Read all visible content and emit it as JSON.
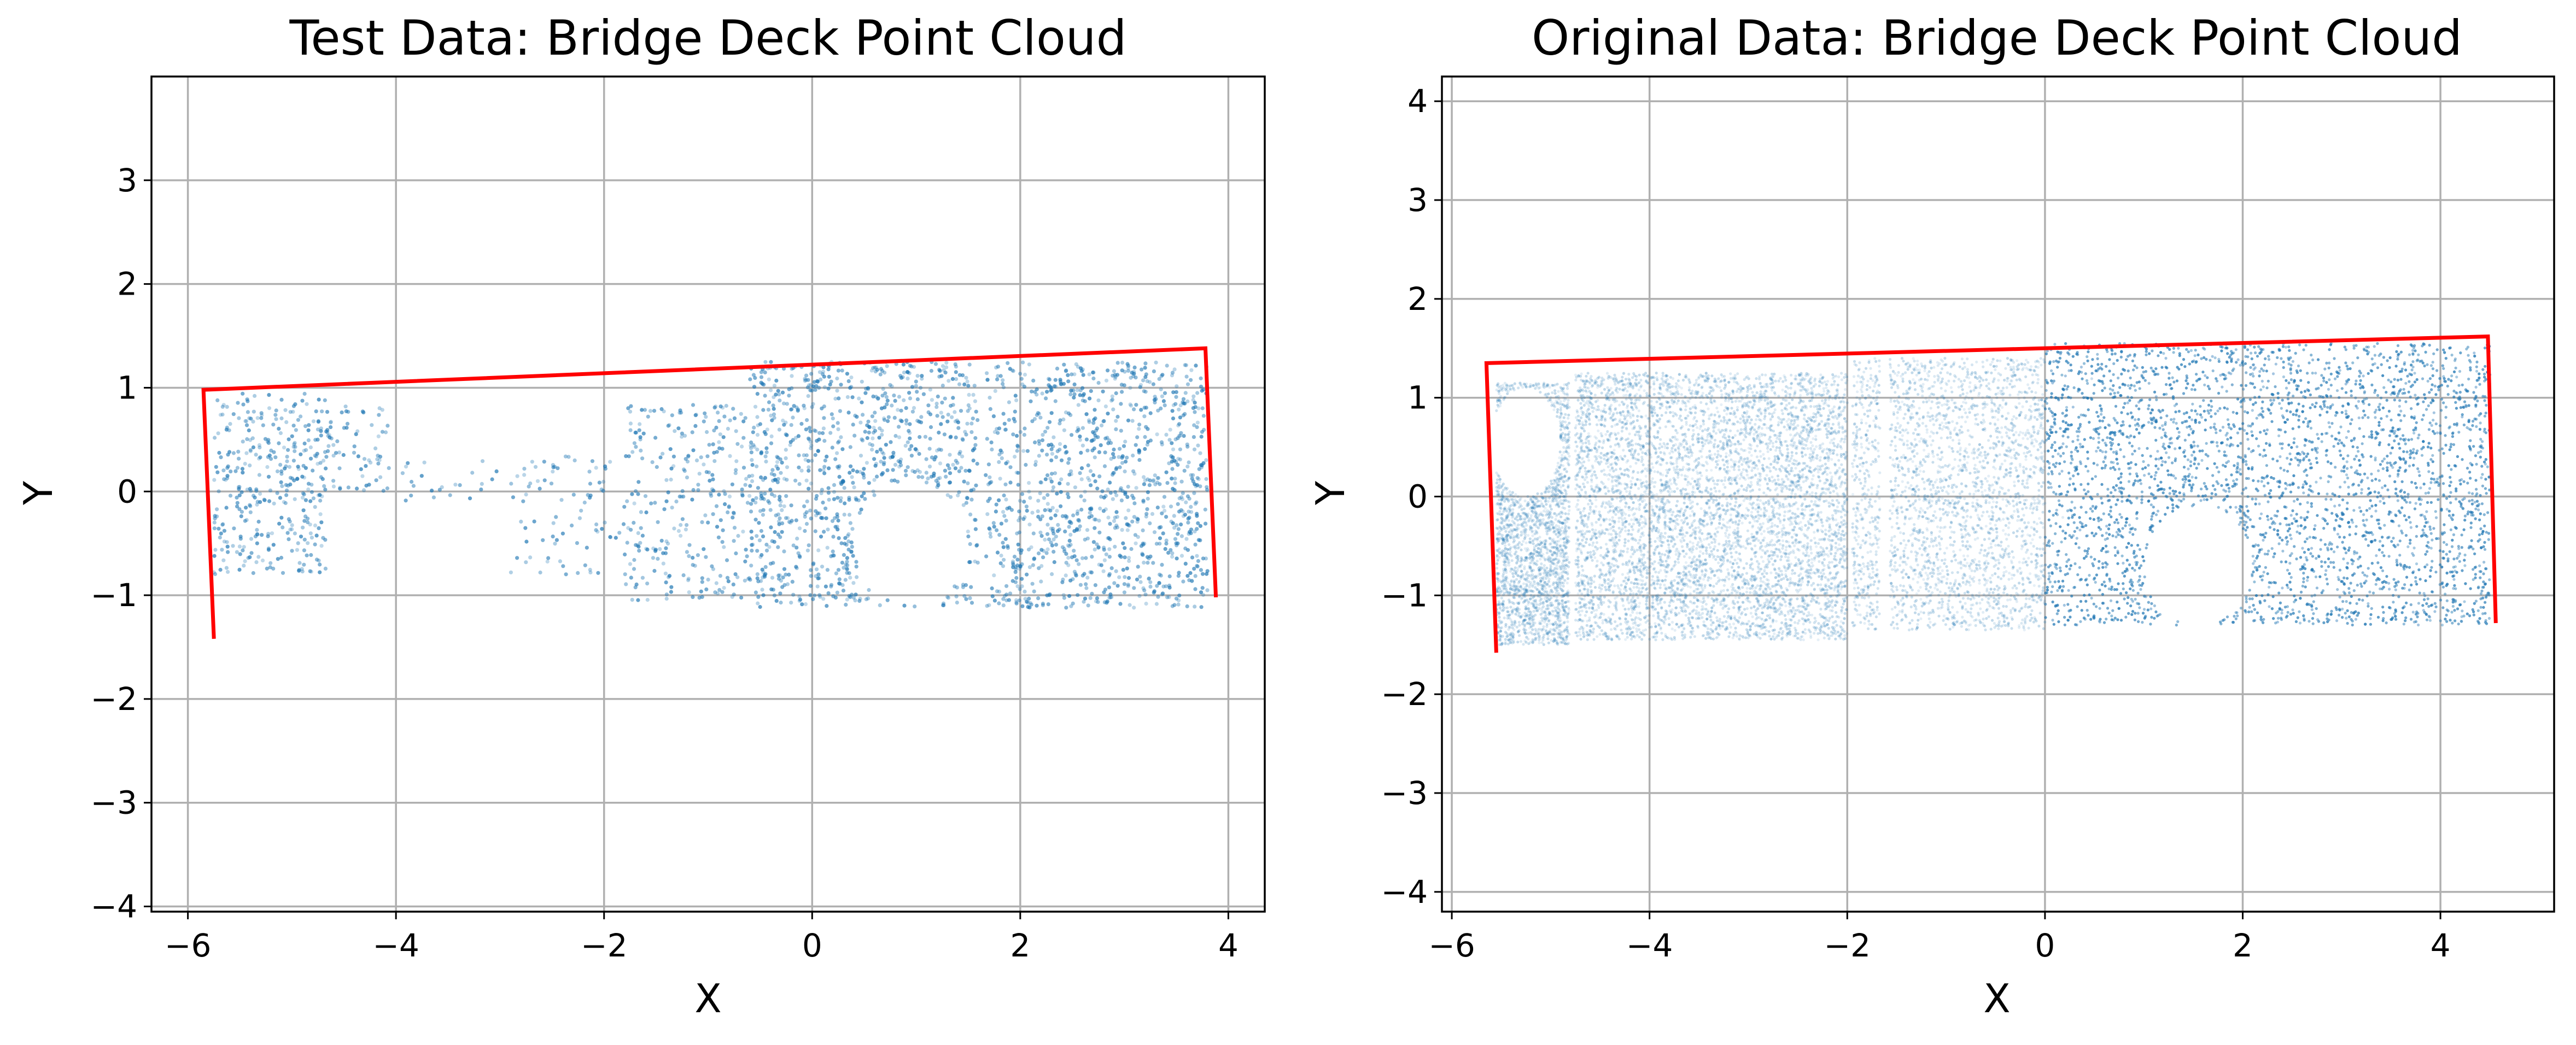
{
  "chart_data": [
    {
      "type": "scatter",
      "title": "Test Data: Bridge Deck Point Cloud",
      "xlabel": "X",
      "ylabel": "Y",
      "xlim": [
        -6.35,
        4.35
      ],
      "ylim": [
        -4.05,
        4.0
      ],
      "x_ticks": [
        "−6",
        "−4",
        "−2",
        "0",
        "2",
        "4"
      ],
      "y_ticks": [
        "−4",
        "−3",
        "−2",
        "−1",
        "0",
        "1",
        "2",
        "3"
      ],
      "x_tick_values": [
        -6,
        -4,
        -2,
        0,
        2,
        4
      ],
      "y_tick_values": [
        -4,
        -3,
        -2,
        -1,
        0,
        1,
        2,
        3
      ],
      "grid": true,
      "point_color": "#1f77b4",
      "point_density": "sparse",
      "boundary_color": "#ff0000",
      "point_regions": [
        {
          "x": [
            -5.75,
            -4.65
          ],
          "y": [
            -0.8,
            0.95
          ],
          "density": 0.85
        },
        {
          "x": [
            -4.65,
            -4.05
          ],
          "y": [
            0.0,
            0.85
          ],
          "density": 0.55
        },
        {
          "x": [
            -4.05,
            -3.0
          ],
          "y": [
            -0.1,
            0.3
          ],
          "density": 0.25
        },
        {
          "x": [
            -2.9,
            -1.8
          ],
          "y": [
            -0.8,
            0.35
          ],
          "density": 0.3
        },
        {
          "x": [
            -1.8,
            -0.6
          ],
          "y": [
            -1.05,
            0.85
          ],
          "density": 0.55
        },
        {
          "x": [
            -0.6,
            3.8
          ],
          "y": [
            -1.12,
            1.25
          ],
          "density": 0.95
        }
      ],
      "holes": [
        {
          "cx": 0.95,
          "cy": -0.5,
          "rx": 0.55,
          "ry": 0.6
        }
      ],
      "gaps": [
        {
          "x": 1.63,
          "w": 0.07
        }
      ],
      "boundary": [
        {
          "x": -5.75,
          "y": -1.42
        },
        {
          "x": -5.85,
          "y": 0.98
        },
        {
          "x": 3.78,
          "y": 1.38
        },
        {
          "x": 3.88,
          "y": -1.02
        }
      ]
    },
    {
      "type": "scatter",
      "title": "Original Data: Bridge Deck Point Cloud",
      "xlabel": "X",
      "ylabel": "Y",
      "xlim": [
        -6.1,
        5.15
      ],
      "ylim": [
        -4.2,
        4.25
      ],
      "x_ticks": [
        "−6",
        "−4",
        "−2",
        "0",
        "2",
        "4"
      ],
      "y_ticks": [
        "−4",
        "−3",
        "−2",
        "−1",
        "0",
        "1",
        "2",
        "3",
        "4"
      ],
      "x_tick_values": [
        -6,
        -4,
        -2,
        0,
        2,
        4
      ],
      "y_tick_values": [
        -4,
        -3,
        -2,
        -1,
        0,
        1,
        2,
        3,
        4
      ],
      "grid": true,
      "point_color": "#1f77b4",
      "point_density": "dense",
      "boundary_color": "#ff0000",
      "point_regions": [
        {
          "x": [
            -5.55,
            -4.8
          ],
          "y": [
            -1.5,
            1.15
          ],
          "density": 1.0
        },
        {
          "x": [
            -4.75,
            -2.0
          ],
          "y": [
            -1.45,
            1.25
          ],
          "density": 0.55
        },
        {
          "x": [
            -1.95,
            0.0
          ],
          "y": [
            -1.35,
            1.4
          ],
          "density": 0.35
        },
        {
          "x": [
            0.0,
            4.5
          ],
          "y": [
            -1.3,
            1.55
          ],
          "density": 0.8
        }
      ],
      "holes": [
        {
          "cx": -5.25,
          "cy": 0.55,
          "rx": 0.35,
          "ry": 0.55
        },
        {
          "cx": 1.55,
          "cy": -0.7,
          "rx": 0.55,
          "ry": 0.6
        }
      ],
      "gaps": [
        {
          "x": -4.78,
          "w": 0.06
        },
        {
          "x": -1.62,
          "w": 0.1
        }
      ],
      "boundary": [
        {
          "x": -5.55,
          "y": -1.58
        },
        {
          "x": -5.65,
          "y": 1.35
        },
        {
          "x": 4.48,
          "y": 1.62
        },
        {
          "x": 4.56,
          "y": -1.28
        }
      ]
    }
  ]
}
